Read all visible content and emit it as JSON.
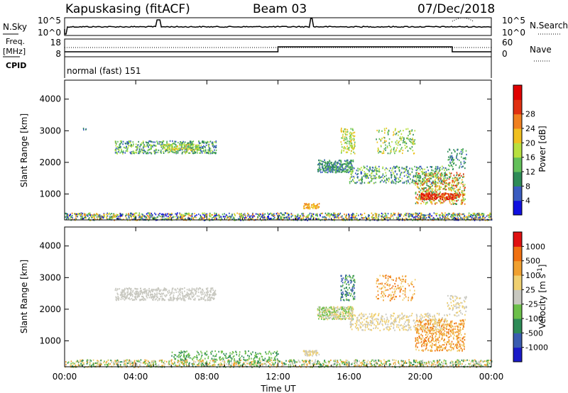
{
  "header": {
    "station": "Kapuskasing (fitACF)",
    "beam": "Beam 03",
    "date": "07/Dec/2018"
  },
  "noise_panel": {
    "left_label": "N.Sky",
    "right_label": "N.Search",
    "left_ticks": [
      "10^5",
      "10^0"
    ],
    "right_ticks": [
      "10^5",
      "10^0"
    ]
  },
  "freq_panel": {
    "left_label_1": "Freq.",
    "left_label_2": "[MHz]",
    "left_ticks": [
      "18",
      "8"
    ],
    "right_label": "Nave",
    "right_ticks": [
      "60",
      "0"
    ],
    "cpid_label": "CPID",
    "mode_text": "normal (fast) 151"
  },
  "chart_data": [
    {
      "type": "heatmap",
      "title": "",
      "xlabel": "",
      "ylabel": "Slant Range [km]",
      "x_ticks": [
        "00:00",
        "04:00",
        "08:00",
        "12:00",
        "16:00",
        "20:00",
        "00:00"
      ],
      "x_range_hours": [
        0,
        24
      ],
      "y_ticks": [
        1000,
        2000,
        3000,
        4000
      ],
      "ylim": [
        180,
        4600
      ],
      "colorbar": {
        "label": "Power [dB]",
        "ticks": [
          "4",
          "8",
          "12",
          "16",
          "20",
          "24",
          "28"
        ],
        "colors": [
          "#1010e0",
          "#3a5cc0",
          "#2e8b57",
          "#63c05a",
          "#b8e040",
          "#f0c020",
          "#f08020",
          "#e03010",
          "#e00000"
        ]
      }
    },
    {
      "type": "heatmap",
      "title": "",
      "xlabel": "Time UT",
      "ylabel": "Slant Range [km]",
      "x_ticks": [
        "00:00",
        "04:00",
        "08:00",
        "12:00",
        "16:00",
        "20:00",
        "00:00"
      ],
      "x_range_hours": [
        0,
        24
      ],
      "y_ticks": [
        1000,
        2000,
        3000,
        4000
      ],
      "ylim": [
        180,
        4600
      ],
      "colorbar": {
        "label": "Velocity [m s",
        "label_sup": "-1",
        "label_end": "]",
        "ticks": [
          "1000",
          "500",
          "100",
          "25",
          "-25",
          "-100",
          "-500",
          "-1000"
        ],
        "colors": [
          "#1a1ac8",
          "#3a5cb0",
          "#2e8b57",
          "#6cc04a",
          "#c8c8c0",
          "#f0d070",
          "#f0a030",
          "#f07010",
          "#e01010"
        ]
      }
    }
  ]
}
